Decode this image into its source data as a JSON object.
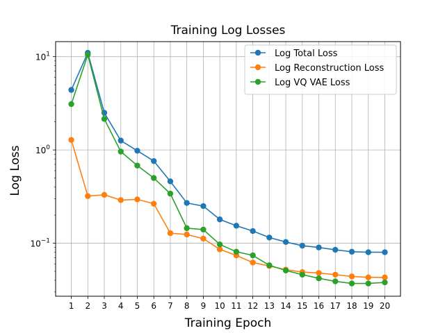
{
  "chart_data": {
    "type": "line",
    "title": "Training Log Losses",
    "xlabel": "Training Epoch",
    "ylabel": "Log Loss",
    "yscale": "log",
    "grid": true,
    "legend_position": "top-right",
    "x": [
      1,
      2,
      3,
      4,
      5,
      6,
      7,
      8,
      9,
      10,
      11,
      12,
      13,
      14,
      15,
      16,
      17,
      18,
      19,
      20
    ],
    "xlim": [
      0.05,
      20.95
    ],
    "ylim": [
      0.027,
      14.5
    ],
    "y_ticks": [
      {
        "value": 0.1,
        "base": "10",
        "exp": "−1"
      },
      {
        "value": 1,
        "base": "10",
        "exp": "0"
      },
      {
        "value": 10,
        "base": "10",
        "exp": "1"
      }
    ],
    "series": [
      {
        "name": "Log Total Loss",
        "color": "#1f77b4",
        "values": [
          4.4,
          11.0,
          2.5,
          1.26,
          0.98,
          0.76,
          0.46,
          0.27,
          0.25,
          0.18,
          0.154,
          0.135,
          0.115,
          0.103,
          0.094,
          0.09,
          0.085,
          0.081,
          0.08,
          0.08
        ]
      },
      {
        "name": "Log Reconstruction Loss",
        "color": "#ff7f0e",
        "values": [
          1.28,
          0.32,
          0.33,
          0.29,
          0.295,
          0.265,
          0.128,
          0.124,
          0.112,
          0.086,
          0.074,
          0.062,
          0.057,
          0.052,
          0.049,
          0.048,
          0.046,
          0.044,
          0.043,
          0.043
        ]
      },
      {
        "name": "Log VQ VAE Loss",
        "color": "#2ca02c",
        "values": [
          3.1,
          10.5,
          2.15,
          0.96,
          0.68,
          0.5,
          0.34,
          0.145,
          0.14,
          0.097,
          0.081,
          0.074,
          0.058,
          0.051,
          0.046,
          0.042,
          0.039,
          0.037,
          0.037,
          0.038
        ]
      }
    ]
  }
}
